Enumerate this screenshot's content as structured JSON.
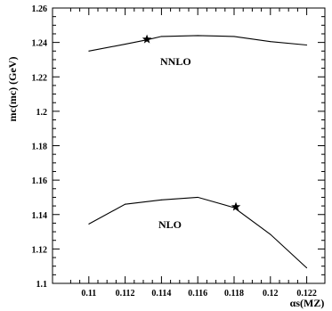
{
  "chart_data": {
    "type": "line",
    "xlabel": "αs(MZ)",
    "ylabel": "mc(mc) (GeV)",
    "xlim": [
      0.108,
      0.123
    ],
    "ylim": [
      1.1,
      1.26
    ],
    "x_ticks": [
      0.11,
      0.112,
      0.114,
      0.116,
      0.118,
      0.12,
      0.122
    ],
    "x_tick_labels": [
      "0.11",
      "0.112",
      "0.114",
      "0.116",
      "0.118",
      "0.12",
      "0.122"
    ],
    "y_ticks": [
      1.1,
      1.12,
      1.14,
      1.16,
      1.18,
      1.2,
      1.22,
      1.24,
      1.26
    ],
    "y_tick_labels": [
      "1.1",
      "1.12",
      "1.14",
      "1.16",
      "1.18",
      "1.2",
      "1.22",
      "1.24",
      "1.26"
    ],
    "grid": false,
    "series": [
      {
        "name": "NNLO",
        "x": [
          0.11,
          0.112,
          0.1132,
          0.114,
          0.116,
          0.118,
          0.12,
          0.122
        ],
        "y": [
          1.235,
          1.239,
          1.2415,
          1.2435,
          1.244,
          1.2435,
          1.2405,
          1.2385
        ],
        "marker": {
          "x": 0.1132,
          "y": 1.2418
        }
      },
      {
        "name": "NLO",
        "x": [
          0.11,
          0.112,
          0.114,
          0.116,
          0.118,
          0.12,
          0.122
        ],
        "y": [
          1.1345,
          1.146,
          1.1485,
          1.15,
          1.144,
          1.1285,
          1.109
        ],
        "marker": {
          "x": 0.1181,
          "y": 1.1445
        }
      }
    ]
  }
}
